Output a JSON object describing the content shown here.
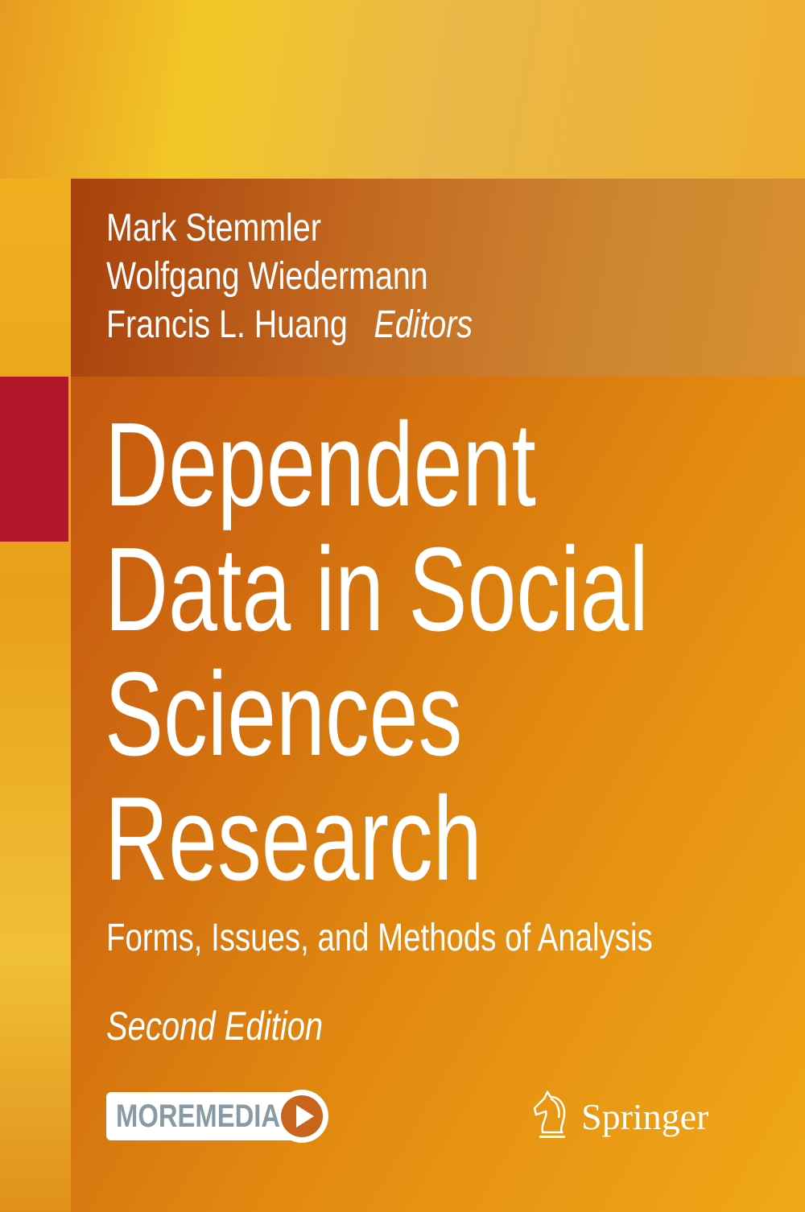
{
  "authors": [
    "Mark Stemmler",
    "Wolfgang Wiedermann",
    "Francis L. Huang"
  ],
  "editors_label": "Editors",
  "title_lines": [
    "Dependent",
    "Data in Social",
    "Sciences",
    "Research"
  ],
  "subtitle": "Forms, Issues, and Methods of Analysis",
  "edition": "Second Edition",
  "moremedia_label": "MOREMEDIA",
  "publisher": "Springer",
  "colors": {
    "accent_red": "#b0182a",
    "panel_orange": "#d06a10",
    "background_yellow": "#f0c030"
  }
}
